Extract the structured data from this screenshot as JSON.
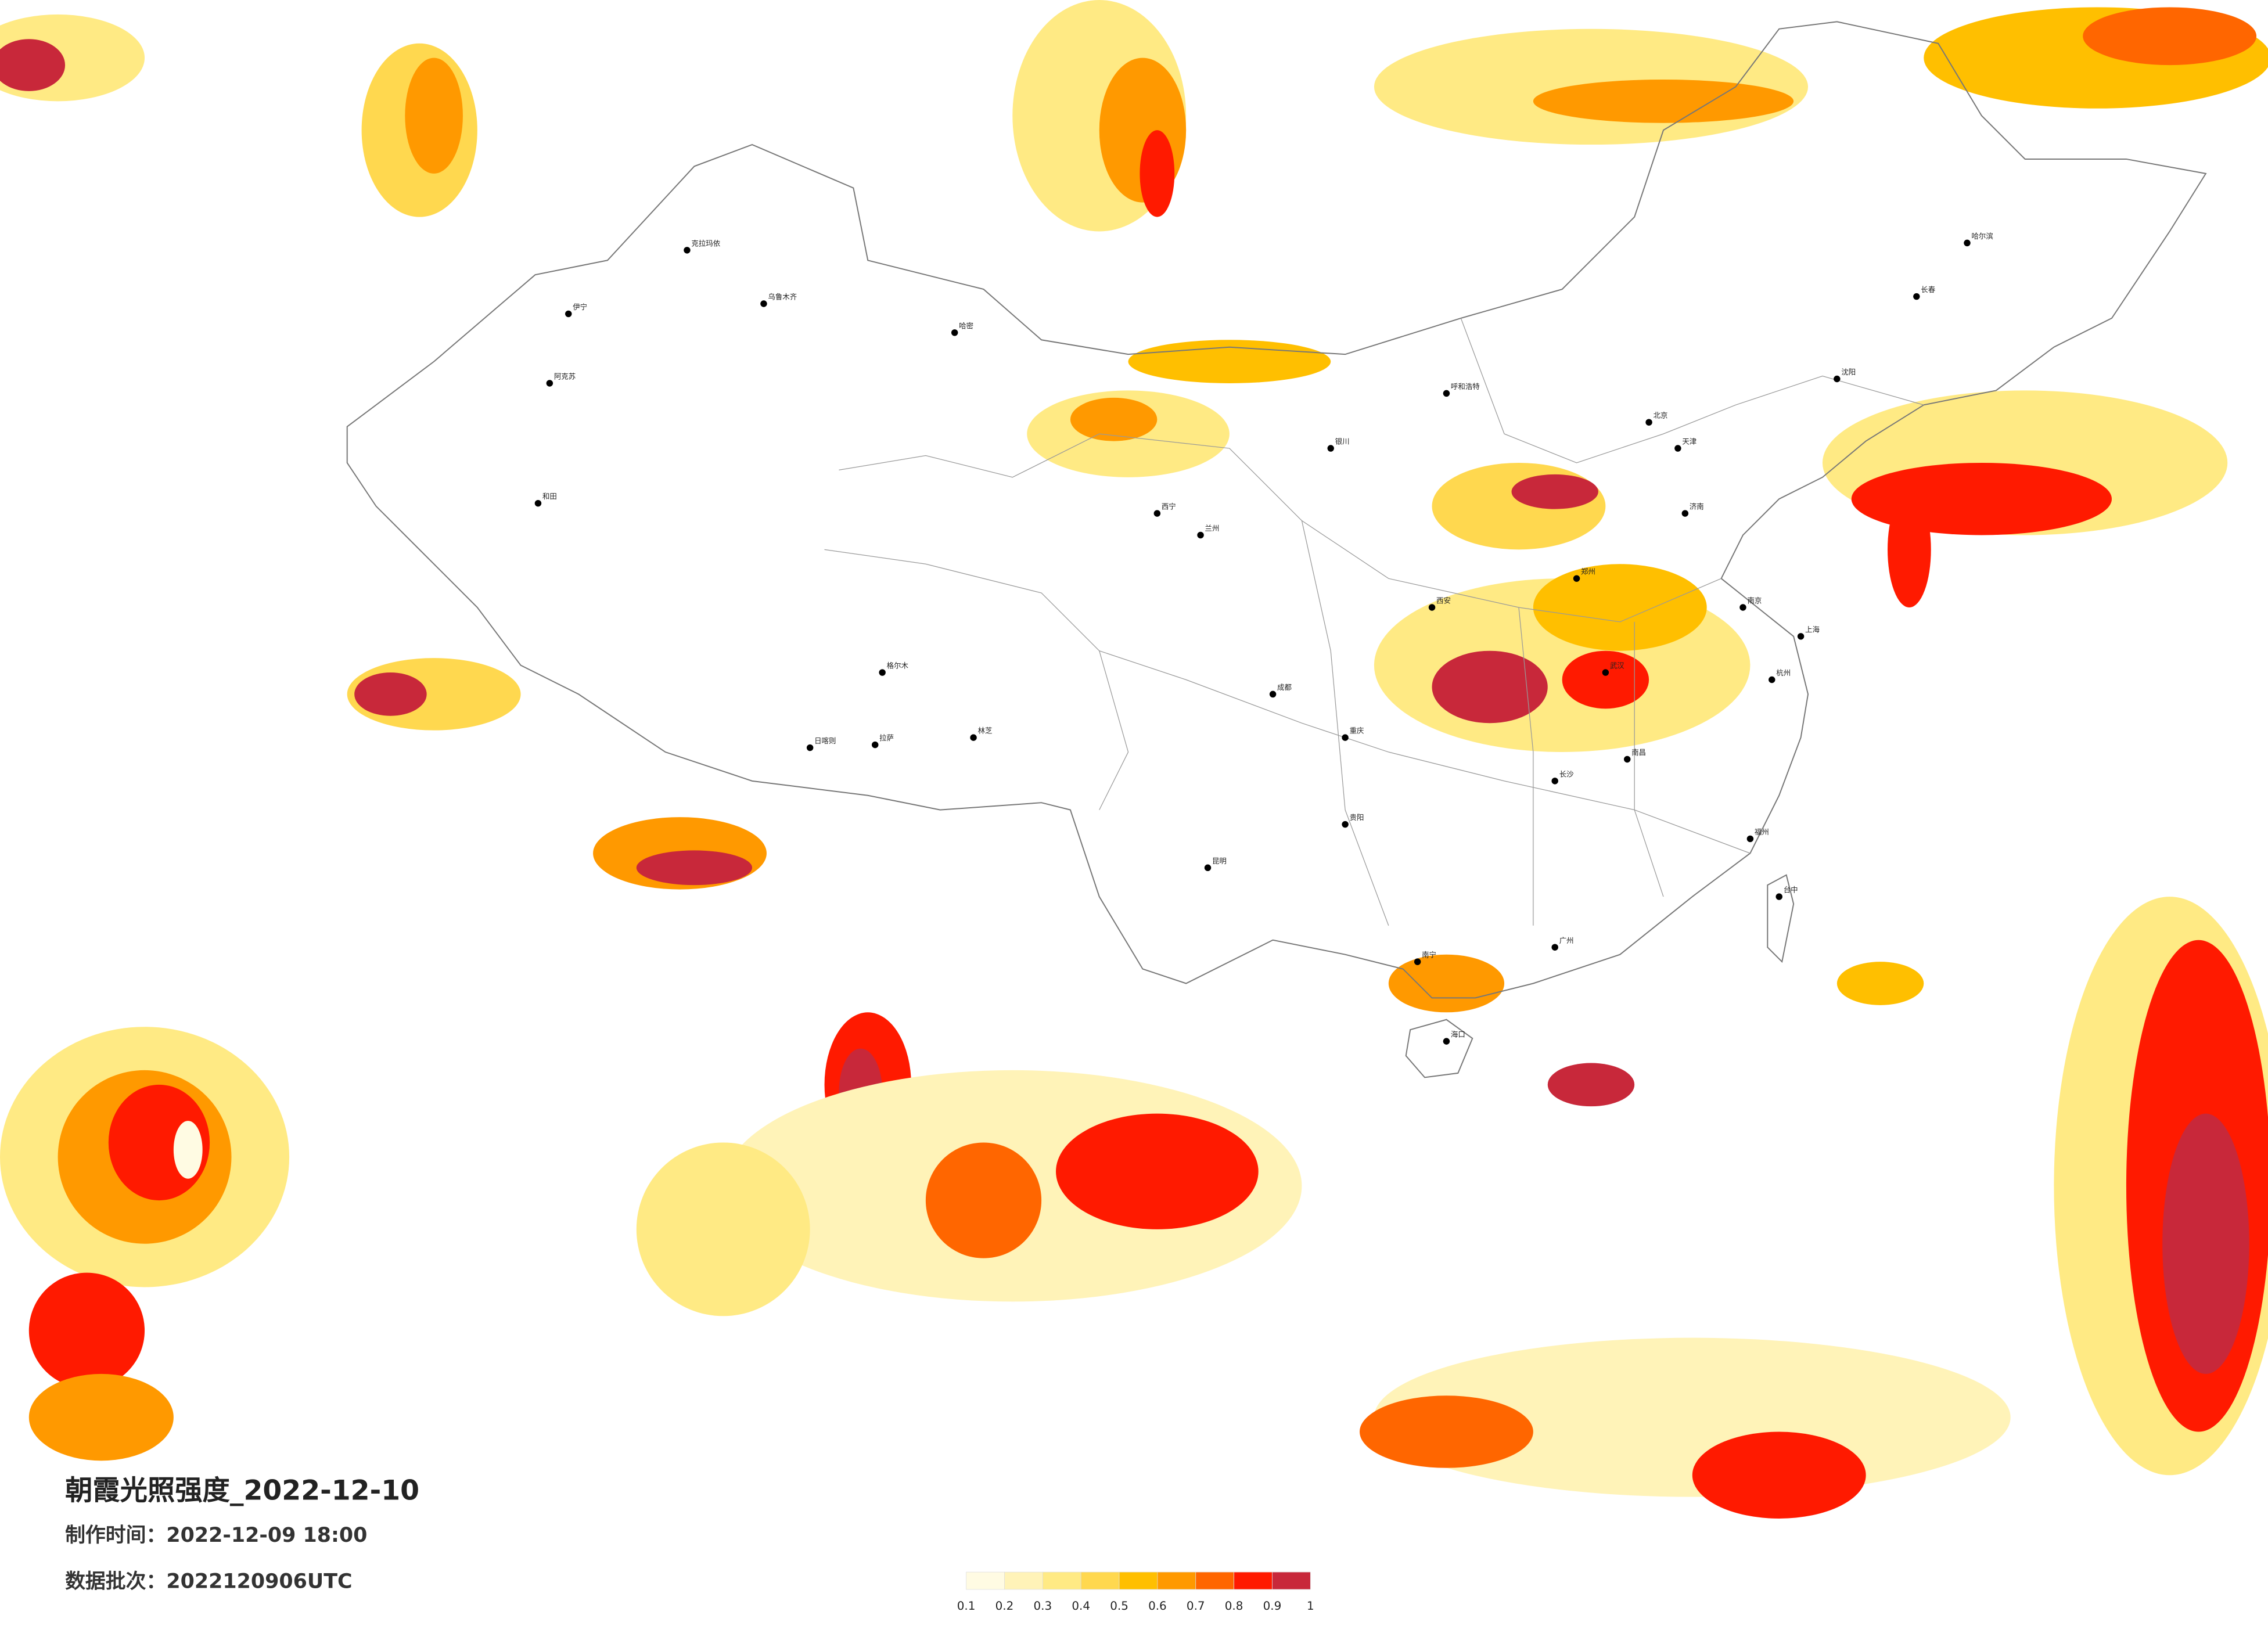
{
  "header": {
    "title": "朝霞光照强度_2022-12-10",
    "made": "制作时间：2022-12-09 18:00",
    "batch": "数据批次：2022120906UTC"
  },
  "legend": {
    "ticks": [
      0.1,
      0.2,
      0.3,
      0.4,
      0.5,
      0.6,
      0.7,
      0.8,
      0.9,
      1
    ],
    "colors": [
      "#fffbe3",
      "#fff3b8",
      "#ffea84",
      "#ffd84f",
      "#ffbf00",
      "#ff9900",
      "#ff6600",
      "#ff1a00",
      "#c8283a"
    ]
  },
  "cities": [
    "克拉玛依",
    "乌鲁木齐",
    "伊宁",
    "阿克苏",
    "和田",
    "哈密",
    "拉萨",
    "日喀则",
    "林芝",
    "格尔木",
    "西宁",
    "兰州",
    "银川",
    "呼和浩特",
    "北京",
    "天津",
    "哈尔滨",
    "长春",
    "沈阳",
    "济南",
    "郑州",
    "西安",
    "成都",
    "重庆",
    "武汉",
    "南京",
    "上海",
    "杭州",
    "长沙",
    "南昌",
    "福州",
    "贵阳",
    "昆明",
    "南宁",
    "广州",
    "海口",
    "台中"
  ]
}
